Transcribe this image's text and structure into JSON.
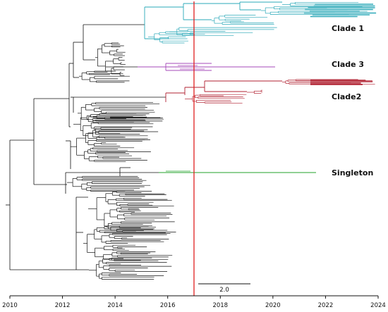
{
  "colors": {
    "clade1": "#2aa8b8",
    "clade3": "#a548b8",
    "clade2": "#b02030",
    "singleton": "#22a02a",
    "root": "#111111",
    "cutoff_line": "#e02020"
  },
  "axis": {
    "ticks": [
      "2010",
      "2012",
      "2014",
      "2016",
      "2018",
      "2020",
      "2022",
      "2024"
    ]
  },
  "cutoff_year": 2017,
  "labels": {
    "clade1": "Clade 1",
    "clade3": "Clade 3",
    "clade2": "Clade2",
    "singleton": "Singleton"
  },
  "scale_bar": {
    "label": "2.0"
  }
}
